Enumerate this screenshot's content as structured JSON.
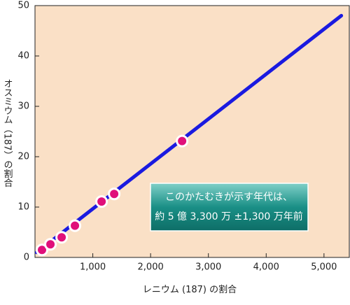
{
  "chart_data": {
    "type": "scatter",
    "xlabel": "レニウム (187) の割合",
    "ylabel": "オスミウム（187）の割合",
    "annotation": [
      "このかたむきが示す年代は、",
      "約 5 億 3,300 万 ±1,300 万年前"
    ],
    "xlim": [
      0,
      5450
    ],
    "ylim": [
      0,
      50
    ],
    "xticks": [
      {
        "value": 1000,
        "label": "1,000"
      },
      {
        "value": 2000,
        "label": "2,000"
      },
      {
        "value": 3000,
        "label": "3,000"
      },
      {
        "value": 4000,
        "label": "4,000"
      },
      {
        "value": 5000,
        "label": "5,000"
      }
    ],
    "yticks": [
      0,
      10,
      20,
      30,
      40,
      50
    ],
    "background": "#fae0c6",
    "line": {
      "color": "#1a1ae0",
      "x": [
        30,
        5300
      ],
      "y": [
        1,
        48
      ]
    },
    "series": [
      {
        "color": "#e0107a",
        "x": [
          121,
          267,
          461,
          691,
          1152,
          1370,
          2545
        ],
        "y": [
          1.5,
          2.6,
          4.0,
          6.3,
          11.1,
          12.6,
          23.1
        ]
      }
    ]
  }
}
